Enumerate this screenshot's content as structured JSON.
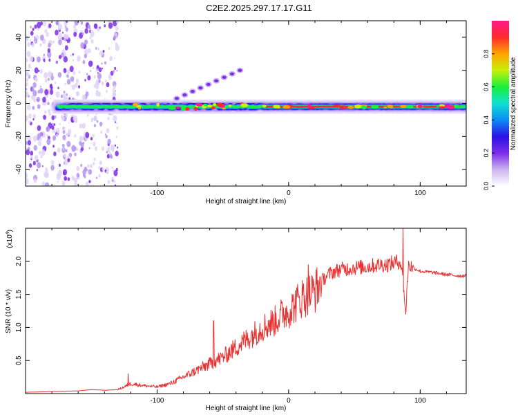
{
  "title": "C2E2.2025.297.17.17.G11",
  "colors": {
    "snr_line": "#e83030",
    "colorbar_stops": [
      "#ffffff",
      "#cbb4f0",
      "#7d2ce8",
      "#2a12e6",
      "#0c8cf5",
      "#10dfd0",
      "#1aef3a",
      "#c8f00a",
      "#ffa400",
      "#ff2a2a",
      "#ff1a8c"
    ]
  },
  "chart_data": [
    {
      "type": "heatmap",
      "name": "spectrogram",
      "title": "C2E2.2025.297.17.17.G11",
      "xlabel": "Height of straight line (km)",
      "ylabel": "Frequency (Hz)",
      "xlim": [
        -200,
        135
      ],
      "ylim": [
        -50,
        50
      ],
      "xticks": [
        -100,
        0,
        100
      ],
      "yticks": [
        -40,
        -20,
        0,
        20,
        40
      ],
      "colorbar": {
        "label": "Normalized spectral amplitude",
        "range": [
          0,
          1
        ],
        "ticks": [
          "0.0",
          "0.2",
          "0.4",
          "0.6",
          "0.8"
        ]
      },
      "features": [
        {
          "description": "scattered noise speckles",
          "x_range": [
            -200,
            -130
          ],
          "y_range": [
            -50,
            50
          ]
        },
        {
          "description": "main spectral line",
          "x_range": [
            -175,
            135
          ],
          "center_frequency_hz": -2,
          "peak_amplitude": 0.9
        },
        {
          "description": "rising diagonal streak",
          "x_range": [
            -85,
            -37
          ],
          "y_range": [
            3,
            20
          ]
        }
      ]
    },
    {
      "type": "line",
      "name": "snr",
      "xlabel": "Height of straight line (km)",
      "ylabel": "SNR (10 * v/v)",
      "y_multiplier_label": "(x10",
      "y_multiplier_exponent": "4",
      "y_multiplier_close": ")",
      "xlim": [
        -200,
        135
      ],
      "ylim": [
        0,
        25000
      ],
      "xticks": [
        -100,
        0,
        100
      ],
      "yticks": [
        5000,
        10000,
        15000,
        20000
      ],
      "ytick_labels": [
        "0.5",
        "1.0",
        "1.5",
        "2.0"
      ],
      "series": [
        {
          "name": "SNR",
          "x": [
            -200,
            -180,
            -160,
            -150,
            -140,
            -130,
            -125,
            -120,
            -110,
            -100,
            -90,
            -80,
            -70,
            -60,
            -50,
            -40,
            -30,
            -20,
            -15,
            -10,
            -5,
            0,
            5,
            10,
            15,
            20,
            25,
            30,
            35,
            40,
            50,
            60,
            70,
            75,
            80,
            85,
            87,
            89,
            91,
            95,
            100,
            110,
            120,
            130,
            135
          ],
          "y": [
            200,
            300,
            400,
            600,
            500,
            600,
            1000,
            1500,
            1200,
            1000,
            1500,
            2500,
            3500,
            4500,
            5500,
            7000,
            8500,
            10000,
            10500,
            11000,
            12000,
            12500,
            13500,
            14500,
            15000,
            15500,
            17000,
            18000,
            18500,
            18800,
            19000,
            19200,
            19500,
            19500,
            19800,
            20000,
            17000,
            12000,
            19500,
            19000,
            18500,
            18300,
            18000,
            17800,
            17800
          ]
        }
      ],
      "spikes": [
        {
          "x": -122,
          "y": 3000
        },
        {
          "x": -57,
          "y": 11000
        },
        {
          "x": 15,
          "y": 19500
        },
        {
          "x": 87,
          "y": 25000
        },
        {
          "x": 89,
          "y": 12000
        }
      ],
      "noise_amplitude_fraction": 0.22
    }
  ]
}
